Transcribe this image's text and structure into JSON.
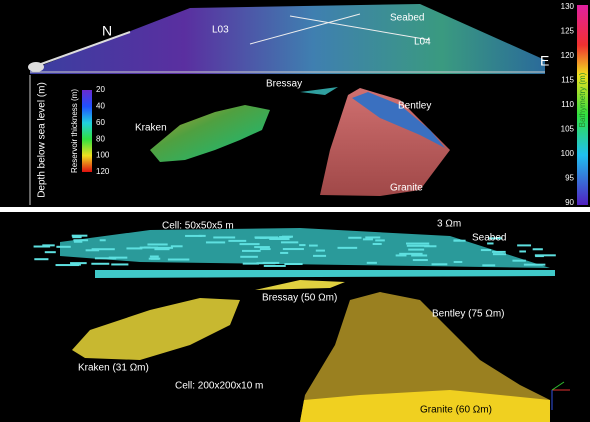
{
  "top_panel": {
    "north": "N",
    "east": "E",
    "line_a": "L03",
    "line_b": "L04",
    "seabed": "Seabed",
    "bressay": "Bressay",
    "bentley": "Bentley",
    "kraken": "Kraken",
    "granite": "Granite",
    "depth_axis_label": "Depth below sea level (m)",
    "thickness_colorbar": {
      "label": "Reservoir thickness (m)",
      "ticks": [
        "20",
        "40",
        "60",
        "80",
        "100",
        "120"
      ]
    },
    "bathymetry_colorbar": {
      "label": "Bathymetry (m)",
      "ticks": [
        "130",
        "125",
        "120",
        "115",
        "110",
        "105",
        "100",
        "95",
        "90"
      ]
    }
  },
  "bottom_panel": {
    "fine_cell": "Cell: 50x50x5 m",
    "seabed_resistivity": "3 Ωm",
    "seabed": "Seabed",
    "bressay": "Bressay (50 Ωm)",
    "bentley": "Bentley (75 Ωm)",
    "kraken": "Kraken (31 Ωm)",
    "coarse_cell": "Cell: 200x200x10 m",
    "granite": "Granite (60 Ωm)"
  }
}
